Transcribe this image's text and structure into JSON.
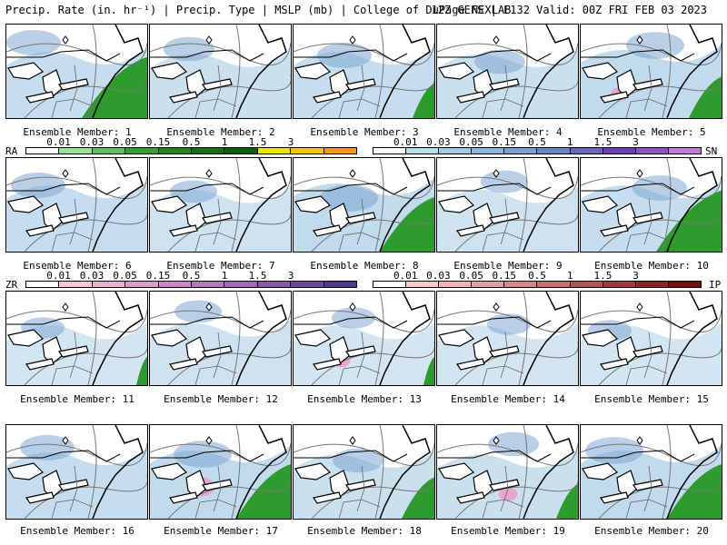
{
  "header": {
    "left": "Precip. Rate (in. hr⁻¹) | Precip. Type | MSLP (mb) | College of DuPage NEXLAB",
    "right": "12Z GEFS | F132 Valid: 00Z FRI FEB 03 2023"
  },
  "legends": {
    "ra": {
      "label": "RA",
      "ticks": [
        "0.01",
        "0.03",
        "0.05",
        "0.15",
        "0.5",
        "1",
        "1.5",
        "3"
      ],
      "colors": [
        "#ffffff",
        "#9be29b",
        "#5cc45c",
        "#2ea32e",
        "#1e8a1e",
        "#137313",
        "#0b5e0b",
        "#e8e800",
        "#f3c800",
        "#f59a00"
      ]
    },
    "sn": {
      "label": "SN",
      "ticks": [
        "0.01",
        "0.03",
        "0.05",
        "0.15",
        "0.5",
        "1",
        "1.5",
        "3"
      ],
      "colors": [
        "#ffffff",
        "#b9dbea",
        "#a3cbe3",
        "#8db7da",
        "#7d9fd0",
        "#6d86c5",
        "#6a67bd",
        "#6d3fb3",
        "#8d52c4",
        "#c07ad8"
      ]
    },
    "zr": {
      "label": "ZR",
      "ticks": [
        "0.01",
        "0.03",
        "0.05",
        "0.15",
        "0.5",
        "1",
        "1.5",
        "3"
      ],
      "colors": [
        "#ffffff",
        "#f5c8d8",
        "#e9b0cd",
        "#d99cc8",
        "#c98ac2",
        "#b57abb",
        "#9f69b3",
        "#855aa8",
        "#6a4a9c",
        "#4e3a8e"
      ]
    },
    "ip": {
      "label": "IP",
      "ticks": [
        "0.01",
        "0.03",
        "0.05",
        "0.15",
        "0.5",
        "1",
        "1.5",
        "3"
      ],
      "colors": [
        "#ffffff",
        "#f7c9c9",
        "#efb3b3",
        "#e39e9e",
        "#d58787",
        "#c66e6e",
        "#b35454",
        "#a03c3c",
        "#8a2525",
        "#731010"
      ]
    }
  },
  "panels": [
    {
      "label": "Ensemble Member: 1",
      "rain": 0.6,
      "snow": 0.5,
      "mix": 0
    },
    {
      "label": "Ensemble Member: 2",
      "rain": 0.0,
      "snow": 0.4,
      "mix": 0
    },
    {
      "label": "Ensemble Member: 3",
      "rain": 0.2,
      "snow": 0.5,
      "mix": 0
    },
    {
      "label": "Ensemble Member: 4",
      "rain": 0.0,
      "snow": 0.4,
      "mix": 0
    },
    {
      "label": "Ensemble Member: 5",
      "rain": 0.3,
      "snow": 0.6,
      "mix": 0.1
    },
    {
      "label": "Ensemble Member: 6",
      "rain": 0.0,
      "snow": 0.5,
      "mix": 0
    },
    {
      "label": "Ensemble Member: 7",
      "rain": 0.0,
      "snow": 0.3,
      "mix": 0
    },
    {
      "label": "Ensemble Member: 8",
      "rain": 0.5,
      "snow": 0.6,
      "mix": 0
    },
    {
      "label": "Ensemble Member: 9",
      "rain": 0.0,
      "snow": 0.3,
      "mix": 0
    },
    {
      "label": "Ensemble Member: 10",
      "rain": 0.6,
      "snow": 0.5,
      "mix": 0
    },
    {
      "label": "Ensemble Member: 11",
      "rain": 0.1,
      "snow": 0.2,
      "mix": 0
    },
    {
      "label": "Ensemble Member: 12",
      "rain": 0.0,
      "snow": 0.3,
      "mix": 0
    },
    {
      "label": "Ensemble Member: 13",
      "rain": 0.1,
      "snow": 0.2,
      "mix": 0.1
    },
    {
      "label": "Ensemble Member: 14",
      "rain": 0.0,
      "snow": 0.2,
      "mix": 0
    },
    {
      "label": "Ensemble Member: 15",
      "rain": 0.0,
      "snow": 0.2,
      "mix": 0
    },
    {
      "label": "Ensemble Member: 16",
      "rain": 0.0,
      "snow": 0.5,
      "mix": 0
    },
    {
      "label": "Ensemble Member: 17",
      "rain": 0.5,
      "snow": 0.6,
      "mix": 0.3
    },
    {
      "label": "Ensemble Member: 18",
      "rain": 0.3,
      "snow": 0.4,
      "mix": 0
    },
    {
      "label": "Ensemble Member: 19",
      "rain": 0.2,
      "snow": 0.4,
      "mix": 0.1
    },
    {
      "label": "Ensemble Member: 20",
      "rain": 0.5,
      "snow": 0.6,
      "mix": 0
    }
  ]
}
